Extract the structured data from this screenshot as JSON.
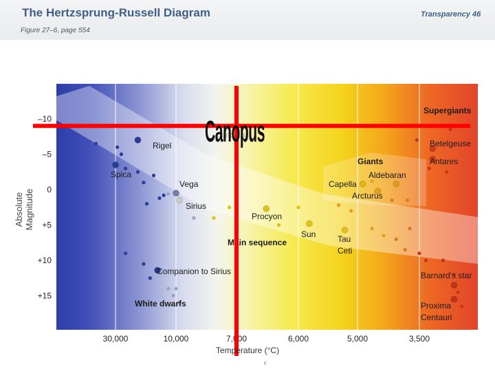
{
  "header": {
    "title": "The Hertzsprung-Russell Diagram",
    "subtitle": "Figure 27–6, page 554",
    "transparency": "Transparency 46"
  },
  "chart_data": {
    "type": "scatter",
    "xlabel": "Temperature (°C)",
    "ylabel": "Absolute Magnitude",
    "x_scale": "log, decreasing to the right",
    "xlim": [
      40000,
      2700
    ],
    "ylim": [
      -12,
      19
    ],
    "x_ticks": [
      {
        "value": 30000,
        "label": "30,000"
      },
      {
        "value": 10000,
        "label": "10,000"
      },
      {
        "value": 7000,
        "label": "7,000"
      },
      {
        "value": 6000,
        "label": "6,000"
      },
      {
        "value": 5000,
        "label": "5,000"
      },
      {
        "value": 3500,
        "label": "3,500"
      }
    ],
    "y_ticks": [
      {
        "value": -10,
        "label": "–10"
      },
      {
        "value": -5,
        "label": "–5"
      },
      {
        "value": 0,
        "label": "0"
      },
      {
        "value": 5,
        "label": "+5"
      },
      {
        "value": 10,
        "label": "+10"
      },
      {
        "value": 15,
        "label": "+15"
      }
    ],
    "background": "spectral gradient blue (hot) → white → yellow → orange → red (cool)",
    "grid": "vertical lines at x ticks",
    "regions": [
      {
        "name": "Supergiants"
      },
      {
        "name": "Giants"
      },
      {
        "name": "Main sequence"
      },
      {
        "name": "White dwarfs"
      }
    ],
    "labeled_stars": [
      {
        "name": "Rigel",
        "temp": 20000,
        "mag": -7.0,
        "color": "#2a3c94"
      },
      {
        "name": "Spica",
        "temp": 30000,
        "mag": -3.5,
        "color": "#2a3c94"
      },
      {
        "name": "Vega",
        "temp": 10000,
        "mag": 0.5,
        "color": "#6f7fa8"
      },
      {
        "name": "Sirius",
        "temp": 9800,
        "mag": 1.5,
        "color": "#c9c9c9"
      },
      {
        "name": "Procyon",
        "temp": 6500,
        "mag": 2.7,
        "color": "#e0c21a"
      },
      {
        "name": "Sun",
        "temp": 5800,
        "mag": 4.8,
        "color": "#e0c21a"
      },
      {
        "name": "Tau Ceti",
        "temp": 5200,
        "mag": 5.7,
        "color": "#e0c21a"
      },
      {
        "name": "Capella",
        "temp": 4850,
        "mag": -0.8,
        "color": "#e0b41a"
      },
      {
        "name": "Aldebaran",
        "temp": 4000,
        "mag": -0.8,
        "color": "#e09d1a"
      },
      {
        "name": "Arcturus",
        "temp": 4450,
        "mag": 0.2,
        "color": "#e0a31a"
      },
      {
        "name": "Betelgeuse",
        "temp": 3300,
        "mag": -5.8,
        "color": "#cc3a1a"
      },
      {
        "name": "Antares",
        "temp": 3300,
        "mag": -4.3,
        "color": "#cc3a1a"
      },
      {
        "name": "Barnard's star",
        "temp": 3000,
        "mag": 13.5,
        "color": "#c23218"
      },
      {
        "name": "Proxima Centauri",
        "temp": 3000,
        "mag": 15.5,
        "color": "#c23218"
      },
      {
        "name": "Companion to Sirius",
        "temp": 14000,
        "mag": 11.4,
        "color": "#2a3c94"
      }
    ],
    "labels": {
      "rigel": "Rigel",
      "spica": "Spica",
      "vega": "Vega",
      "sirius": "Sirius",
      "procyon": "Procyon",
      "sun": "Sun",
      "tau": "Tau",
      "ceti": "Ceti",
      "capella": "Capella",
      "aldebaran": "Aldebaran",
      "arcturus": "Arcturus",
      "giants": "Giants",
      "supergiants": "Supergiants",
      "betelgeuse": "Betelgeuse",
      "antares": "Antares",
      "main_sequence": "Main sequence",
      "companion": "Companion to Sirius",
      "white_dwarfs": "White dwarfs",
      "barnard": "Barnard's star",
      "proxima": "Proxima",
      "centauri": "Centauri",
      "canopus_faint": "Canopus"
    },
    "field_stars": [
      {
        "temp": 33000,
        "mag": -6.5
      },
      {
        "temp": 29000,
        "mag": -6.0
      },
      {
        "temp": 27000,
        "mag": -5.0
      },
      {
        "temp": 25000,
        "mag": -3.0
      },
      {
        "temp": 20000,
        "mag": -2.5
      },
      {
        "temp": 15000,
        "mag": -2.0
      },
      {
        "temp": 18000,
        "mag": -1.0
      },
      {
        "temp": 13500,
        "mag": 1.2
      },
      {
        "temp": 12500,
        "mag": 0.8
      },
      {
        "temp": 11500,
        "mag": 0.6
      },
      {
        "temp": 17000,
        "mag": 2.0
      },
      {
        "temp": 9000,
        "mag": 4.0
      },
      {
        "temp": 8000,
        "mag": 4.0
      },
      {
        "temp": 7300,
        "mag": 2.5
      },
      {
        "temp": 6300,
        "mag": 5.0
      },
      {
        "temp": 6000,
        "mag": 2.5
      },
      {
        "temp": 5300,
        "mag": 2.2
      },
      {
        "temp": 5100,
        "mag": 3.0
      },
      {
        "temp": 4600,
        "mag": 5.5
      },
      {
        "temp": 4300,
        "mag": 6.5
      },
      {
        "temp": 4000,
        "mag": 7.0
      },
      {
        "temp": 3800,
        "mag": 8.5
      },
      {
        "temp": 3500,
        "mag": 9.0
      },
      {
        "temp": 3400,
        "mag": 10.0
      },
      {
        "temp": 3150,
        "mag": 10.0
      },
      {
        "temp": 3000,
        "mag": 12.0
      },
      {
        "temp": 2950,
        "mag": 14.5
      },
      {
        "temp": 2900,
        "mag": 16.5
      },
      {
        "temp": 3550,
        "mag": -7.0
      },
      {
        "temp": 3200,
        "mag": -9.0
      },
      {
        "temp": 3050,
        "mag": -8.5
      },
      {
        "temp": 3350,
        "mag": -3.0
      },
      {
        "temp": 3100,
        "mag": -2.5
      },
      {
        "temp": 4600,
        "mag": -1.2
      },
      {
        "temp": 4100,
        "mag": 1.5
      },
      {
        "temp": 3700,
        "mag": 5.5
      },
      {
        "temp": 3750,
        "mag": 1.5
      },
      {
        "temp": 25000,
        "mag": 9.0
      },
      {
        "temp": 18000,
        "mag": 10.5
      },
      {
        "temp": 16000,
        "mag": 12.5
      },
      {
        "temp": 11500,
        "mag": 14.0
      },
      {
        "temp": 10500,
        "mag": 15.0
      },
      {
        "temp": 9800,
        "mag": 16.0
      },
      {
        "temp": 10000,
        "mag": 14.0
      }
    ]
  },
  "annotations": {
    "canopus_label": "Canopus",
    "crosshair_color": "#ff0000",
    "crosshair_temp": 7000,
    "crosshair_mag": -9.0,
    "footer_mark": "ᶜ"
  }
}
